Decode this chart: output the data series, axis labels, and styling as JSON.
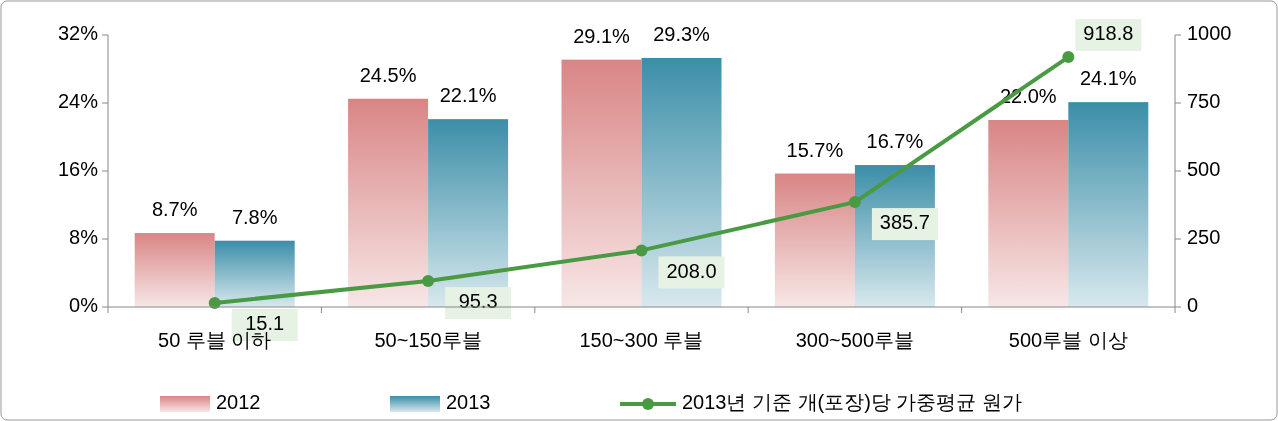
{
  "chart_data": {
    "type": "bar",
    "categories": [
      "50 루블 이하",
      "50~150루블",
      "150~300 루블",
      "300~500루블",
      "500루블 이상"
    ],
    "series": [
      {
        "name": "2012",
        "color": "#d98585",
        "values": [
          8.7,
          24.5,
          29.1,
          15.7,
          22.0
        ],
        "value_labels": [
          "8.7%",
          "24.5%",
          "29.1%",
          "15.7%",
          "22.0%"
        ]
      },
      {
        "name": "2013",
        "color": "#3b8ea8",
        "values": [
          7.8,
          22.1,
          29.3,
          16.7,
          24.1
        ],
        "value_labels": [
          "7.8%",
          "22.1%",
          "29.3%",
          "16.7%",
          "24.1%"
        ]
      },
      {
        "name": "2013년 기준 개(포장)당 가중평균 원가",
        "type": "line",
        "axis": "y2",
        "color": "#4a9a44",
        "marker": "circle",
        "values": [
          15.1,
          95.3,
          208.0,
          385.7,
          918.8
        ],
        "value_labels": [
          "15.1",
          "95.3",
          "208.0",
          "385.7",
          "918.8"
        ]
      }
    ],
    "ylim": [
      0,
      32
    ],
    "yticks": [
      {
        "value": 0,
        "label": "0%"
      },
      {
        "value": 8,
        "label": "8%"
      },
      {
        "value": 16,
        "label": "16%"
      },
      {
        "value": 24,
        "label": "24%"
      },
      {
        "value": 32,
        "label": "32%"
      }
    ],
    "y2lim": [
      0,
      1000
    ],
    "y2ticks": [
      0,
      250,
      500,
      750,
      1000
    ],
    "legend": "bottom",
    "grid": false
  }
}
